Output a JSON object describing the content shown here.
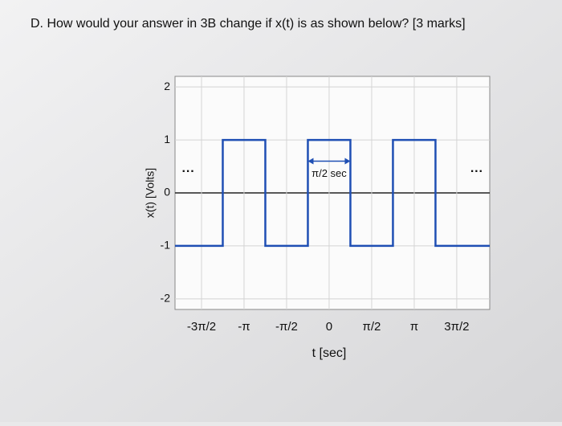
{
  "question": "D. How would your answer in 3B change if x(t) is as shown below? [3 marks]",
  "chart_data": {
    "type": "line",
    "y_label": "x(t) [Volts]",
    "x_label": "t [sec]",
    "x": [
      -5.69,
      -3.927,
      -3.927,
      -2.356,
      -2.356,
      -0.785,
      -0.785,
      0.785,
      0.785,
      2.356,
      2.356,
      3.927,
      3.927,
      5.93
    ],
    "series": [
      {
        "name": "x(t)",
        "color": "#1f4fb4",
        "values": [
          -1,
          -1,
          1,
          1,
          -1,
          -1,
          1,
          1,
          -1,
          -1,
          1,
          1,
          -1,
          -1
        ]
      }
    ],
    "xlim": [
      -5.69,
      5.93
    ],
    "ylim": [
      -2.2,
      2.2
    ],
    "xticks": [
      {
        "value": -4.712,
        "label": "-3π/2"
      },
      {
        "value": -3.142,
        "label": "-π"
      },
      {
        "value": -1.571,
        "label": "-π/2"
      },
      0,
      {
        "value": 1.571,
        "label": "π/2"
      },
      {
        "value": 3.142,
        "label": "π"
      },
      {
        "value": 4.712,
        "label": "3π/2"
      }
    ],
    "yticks": [
      -2,
      -1,
      0,
      1,
      2
    ],
    "grid": true,
    "annotations": [
      {
        "text": "π/2 sec",
        "x0": -0.785,
        "x1": 0.785,
        "y": 0.6
      },
      {
        "text": "···",
        "x": -5.2,
        "y": 0.4
      },
      {
        "text": "···",
        "x": 5.45,
        "y": 0.4
      }
    ]
  }
}
